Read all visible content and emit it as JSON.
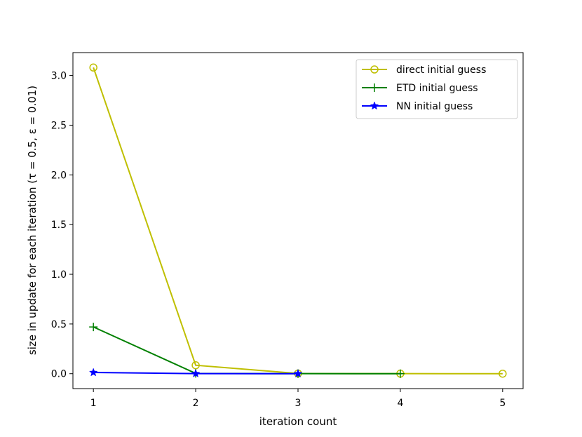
{
  "chart_data": {
    "type": "line",
    "title": "",
    "xlabel": "iteration count",
    "ylabel": "size in update for each iteration (τ = 0.5, ε = 0.01)",
    "xlim": [
      0.8,
      5.2
    ],
    "ylim": [
      -0.15,
      3.23
    ],
    "x_ticks": [
      1,
      2,
      3,
      4,
      5
    ],
    "y_ticks": [
      0.0,
      0.5,
      1.0,
      1.5,
      2.0,
      2.5,
      3.0
    ],
    "y_tick_labels": [
      "0.0",
      "0.5",
      "1.0",
      "1.5",
      "2.0",
      "2.5",
      "3.0"
    ],
    "grid": false,
    "legend_position": "top-right",
    "series": [
      {
        "name": "direct initial guess",
        "color": "#bfbf00",
        "marker": "circle-open",
        "x": [
          1,
          2,
          3,
          4,
          5
        ],
        "y": [
          3.08,
          0.085,
          0.002,
          0.0005,
          0.0001
        ]
      },
      {
        "name": "ETD initial guess",
        "color": "#008000",
        "marker": "plus",
        "x": [
          1,
          2,
          3,
          4
        ],
        "y": [
          0.47,
          0.003,
          0.0005,
          0.0001
        ]
      },
      {
        "name": "NN initial guess",
        "color": "#0000ff",
        "marker": "star",
        "x": [
          1,
          2,
          3
        ],
        "y": [
          0.012,
          0.001,
          0.0001
        ]
      }
    ]
  }
}
